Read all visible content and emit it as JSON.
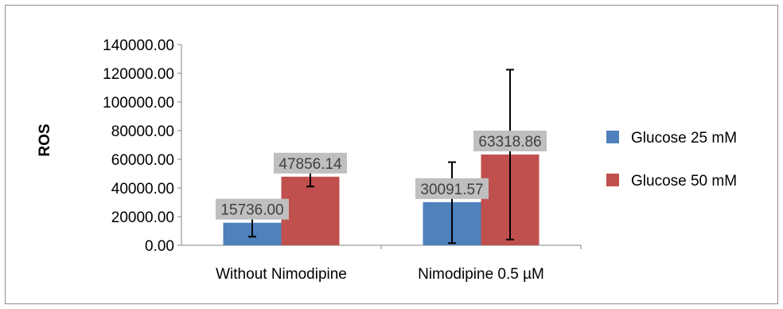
{
  "chart_data": {
    "type": "bar",
    "title": "",
    "xlabel": "",
    "ylabel": "ROS",
    "ylim": [
      0,
      140000
    ],
    "yticks": [
      "0.00",
      "20000.00",
      "40000.00",
      "60000.00",
      "80000.00",
      "100000.00",
      "120000.00",
      "140000.00"
    ],
    "categories": [
      "Without Nimodipine",
      "Nimodipine 0.5 µM"
    ],
    "series": [
      {
        "name": "Glucose 25 mM",
        "color": "#4f81bd",
        "values": [
          15736.0,
          30091.57
        ],
        "labels": [
          "15736.00",
          "30091.57"
        ],
        "error_low": [
          6000,
          1500
        ],
        "error_high": [
          22000,
          58000
        ]
      },
      {
        "name": "Glucose 50 mM",
        "color": "#c0504d",
        "values": [
          47856.14,
          63318.86
        ],
        "labels": [
          "47856.14",
          "63318.86"
        ],
        "error_low": [
          41000,
          4000
        ],
        "error_high": [
          54500,
          122500
        ]
      }
    ],
    "grid": false,
    "legend_position": "right"
  }
}
